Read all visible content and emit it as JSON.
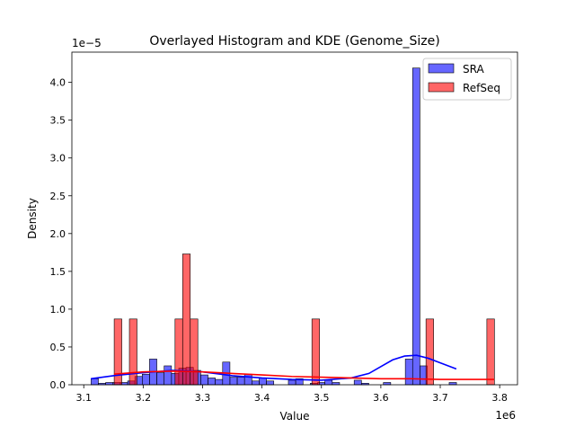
{
  "chart_data": {
    "type": "bar",
    "title": "Overlayed Histogram and KDE (Genome_Size)",
    "xlabel": "Value",
    "ylabel": "Density",
    "x_offset_label": "1e6",
    "y_offset_label": "1e−5",
    "xlim": [
      3.08,
      3.83
    ],
    "ylim": [
      0,
      4.4
    ],
    "x_ticks": [
      3.1,
      3.2,
      3.3,
      3.4,
      3.5,
      3.6,
      3.7,
      3.8
    ],
    "y_ticks": [
      0.0,
      0.5,
      1.0,
      1.5,
      2.0,
      2.5,
      3.0,
      3.5,
      4.0
    ],
    "legend_position": "top-right",
    "series": [
      {
        "name": "SRA",
        "color": "#0000ff",
        "bin_width": 0.0123,
        "bins": [
          [
            3.1123,
            0.08
          ],
          [
            3.1246,
            0.02
          ],
          [
            3.1369,
            0.03
          ],
          [
            3.1492,
            0.03
          ],
          [
            3.1615,
            0.03
          ],
          [
            3.1738,
            0.05
          ],
          [
            3.1861,
            0.11
          ],
          [
            3.1984,
            0.14
          ],
          [
            3.2107,
            0.34
          ],
          [
            3.223,
            0.16
          ],
          [
            3.2353,
            0.25
          ],
          [
            3.2476,
            0.15
          ],
          [
            3.2599,
            0.22
          ],
          [
            3.2722,
            0.23
          ],
          [
            3.2845,
            0.19
          ],
          [
            3.2968,
            0.13
          ],
          [
            3.3091,
            0.09
          ],
          [
            3.3214,
            0.07
          ],
          [
            3.3337,
            0.3
          ],
          [
            3.346,
            0.1
          ],
          [
            3.3583,
            0.1
          ],
          [
            3.3706,
            0.14
          ],
          [
            3.3829,
            0.05
          ],
          [
            3.3952,
            0.09
          ],
          [
            3.4075,
            0.05
          ],
          [
            3.4444,
            0.06
          ],
          [
            3.4567,
            0.08
          ],
          [
            3.4813,
            0.02
          ],
          [
            3.4936,
            0.03
          ],
          [
            3.5059,
            0.06
          ],
          [
            3.5182,
            0.03
          ],
          [
            3.5551,
            0.06
          ],
          [
            3.5674,
            0.02
          ],
          [
            3.6043,
            0.03
          ],
          [
            3.6412,
            0.34
          ],
          [
            3.6535,
            4.19
          ],
          [
            3.6658,
            0.25
          ],
          [
            3.715,
            0.03
          ]
        ],
        "kde": {
          "x": [
            3.112,
            3.15,
            3.2,
            3.25,
            3.3,
            3.35,
            3.4,
            3.45,
            3.5,
            3.55,
            3.58,
            3.6,
            3.62,
            3.64,
            3.66,
            3.68,
            3.7,
            3.727
          ],
          "y": [
            0.08,
            0.12,
            0.16,
            0.19,
            0.17,
            0.12,
            0.09,
            0.07,
            0.06,
            0.09,
            0.15,
            0.24,
            0.33,
            0.38,
            0.39,
            0.35,
            0.29,
            0.21
          ]
        }
      },
      {
        "name": "RefSeq",
        "color": "#ff0000",
        "bin_width": 0.0128,
        "bins": [
          [
            3.1512,
            0.87
          ],
          [
            3.1768,
            0.87
          ],
          [
            3.2536,
            0.87
          ],
          [
            3.2664,
            1.73
          ],
          [
            3.2792,
            0.87
          ],
          [
            3.484,
            0.87
          ],
          [
            3.676,
            0.87
          ],
          [
            3.7784,
            0.87
          ]
        ],
        "kde": {
          "x": [
            3.151,
            3.2,
            3.25,
            3.3,
            3.35,
            3.4,
            3.45,
            3.5,
            3.55,
            3.6,
            3.65,
            3.7,
            3.75,
            3.791
          ],
          "y": [
            0.14,
            0.17,
            0.18,
            0.17,
            0.15,
            0.13,
            0.11,
            0.1,
            0.09,
            0.08,
            0.08,
            0.07,
            0.07,
            0.07
          ]
        }
      }
    ]
  }
}
